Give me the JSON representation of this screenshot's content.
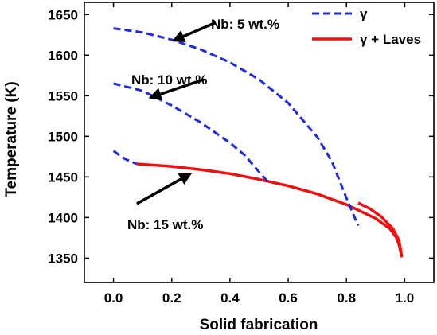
{
  "chart_data": {
    "type": "line",
    "xlabel": "Solid fabrication",
    "ylabel": "Temperature (K)",
    "xlim": [
      -0.1,
      1.1
    ],
    "ylim": [
      1320,
      1665
    ],
    "xticks": [
      "0.0",
      "0.2",
      "0.4",
      "0.6",
      "0.8",
      "1.0"
    ],
    "yticks": [
      "1350",
      "1400",
      "1450",
      "1500",
      "1550",
      "1600",
      "1650"
    ],
    "grid": false,
    "legend_position": "top-right",
    "colors": {
      "gamma": "#1f2be0",
      "laves": "#ee1111"
    },
    "series": [
      {
        "name": "γ",
        "style": "dashed",
        "color": "#1f2be0",
        "segments": [
          {
            "label": "Nb: 5 wt.%",
            "x": [
              0.0,
              0.1,
              0.2,
              0.3,
              0.4,
              0.5,
              0.6,
              0.7,
              0.75,
              0.8,
              0.84
            ],
            "y": [
              1633,
              1628,
              1619,
              1607,
              1591,
              1570,
              1541,
              1499,
              1469,
              1424,
              1390
            ]
          },
          {
            "label": "Nb: 10 wt.%",
            "x": [
              0.0,
              0.1,
              0.2,
              0.3,
              0.4,
              0.45,
              0.5,
              0.53
            ],
            "y": [
              1565,
              1556,
              1538,
              1517,
              1492,
              1477,
              1456,
              1444
            ]
          },
          {
            "label": "Nb: 15 wt.%",
            "x": [
              0.0,
              0.04,
              0.08
            ],
            "y": [
              1482,
              1472,
              1466
            ]
          }
        ]
      },
      {
        "name": "γ + Laves",
        "style": "solid",
        "color": "#ee1111",
        "segments": [
          {
            "label": "Nb: 15 wt.%",
            "x": [
              0.08,
              0.2,
              0.3,
              0.4,
              0.5,
              0.6,
              0.7,
              0.8,
              0.9,
              0.95,
              0.97,
              0.98,
              0.99
            ],
            "y": [
              1466,
              1463,
              1459,
              1454,
              1447,
              1439,
              1429,
              1416,
              1399,
              1386,
              1376,
              1367,
              1351
            ]
          },
          {
            "label": "Nb: 5 wt.%",
            "x": [
              0.84,
              0.88,
              0.92,
              0.96,
              0.98,
              0.99
            ],
            "y": [
              1418,
              1411,
              1401,
              1386,
              1372,
              1352
            ]
          }
        ]
      }
    ],
    "annotations": [
      {
        "text": "Nb: 5 wt.%",
        "tail": [
          0.35,
          1640
        ],
        "head": [
          0.2,
          1617
        ]
      },
      {
        "text": "Nb: 10 wt.%",
        "tail": [
          0.31,
          1570
        ],
        "head": [
          0.12,
          1547
        ]
      },
      {
        "text": "Nb: 15 wt.%",
        "tail": [
          0.08,
          1417
        ],
        "head": [
          0.27,
          1455
        ]
      }
    ]
  }
}
